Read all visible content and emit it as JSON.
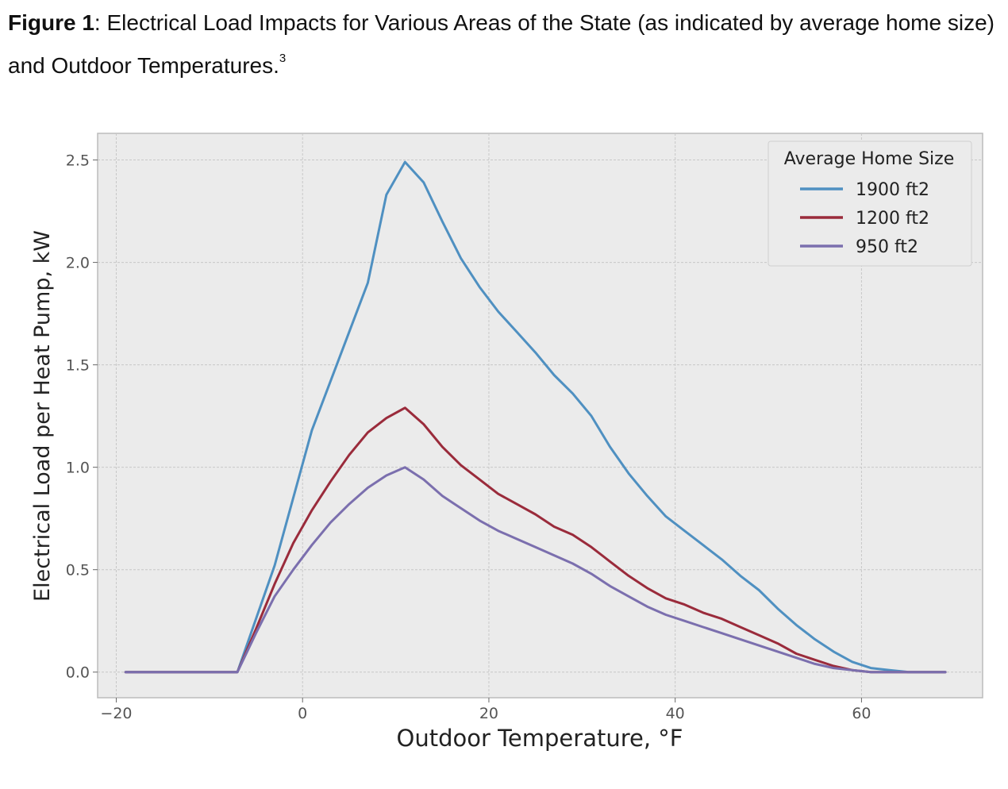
{
  "caption": {
    "label": "Figure 1",
    "separator": ":",
    "text": " Electrical Load Impacts for Various Areas of the State (as indicated by average home size) and Outdoor Temperatures.",
    "footnote": "3"
  },
  "chart_data": {
    "type": "line",
    "title": "",
    "xlabel": "Outdoor Temperature, °F",
    "ylabel": "Electrical Load per Heat Pump, kW",
    "xlim": [
      -22,
      73
    ],
    "ylim": [
      -0.125,
      2.63
    ],
    "xticks": [
      -20,
      0,
      20,
      40,
      60
    ],
    "xtick_labels": [
      "−20",
      "0",
      "20",
      "40",
      "60"
    ],
    "yticks": [
      0.0,
      0.5,
      1.0,
      1.5,
      2.0,
      2.5
    ],
    "ytick_labels": [
      "0.0",
      "0.5",
      "1.0",
      "1.5",
      "2.0",
      "2.5"
    ],
    "grid": true,
    "legend": {
      "title": "Average Home Size",
      "placement": "top-right"
    },
    "series": [
      {
        "name": "1900 ft2",
        "color": "#4f90c1",
        "x": [
          -19,
          -7,
          -3,
          1,
          3,
          5,
          7,
          9,
          11,
          13,
          15,
          17,
          19,
          21,
          23,
          25,
          27,
          29,
          31,
          33,
          35,
          37,
          39,
          41,
          43,
          45,
          47,
          49,
          51,
          53,
          55,
          57,
          59,
          61,
          63,
          65,
          67,
          69
        ],
        "y": [
          0,
          0,
          0.52,
          1.18,
          1.42,
          1.66,
          1.9,
          2.33,
          2.49,
          2.39,
          2.2,
          2.02,
          1.88,
          1.76,
          1.66,
          1.56,
          1.45,
          1.36,
          1.25,
          1.1,
          0.97,
          0.86,
          0.76,
          0.69,
          0.62,
          0.55,
          0.47,
          0.4,
          0.31,
          0.23,
          0.16,
          0.1,
          0.05,
          0.02,
          0.01,
          0,
          0,
          0
        ]
      },
      {
        "name": "1200 ft2",
        "color": "#9a2b3b",
        "x": [
          -19,
          -7,
          -5,
          -3,
          -1,
          1,
          3,
          5,
          7,
          9,
          11,
          13,
          15,
          17,
          19,
          21,
          23,
          25,
          27,
          29,
          31,
          33,
          35,
          37,
          39,
          41,
          43,
          45,
          47,
          49,
          51,
          53,
          55,
          57,
          59,
          61,
          63,
          65,
          67,
          69
        ],
        "y": [
          0,
          0,
          0.21,
          0.43,
          0.63,
          0.79,
          0.93,
          1.06,
          1.17,
          1.24,
          1.29,
          1.21,
          1.1,
          1.01,
          0.94,
          0.87,
          0.82,
          0.77,
          0.71,
          0.67,
          0.61,
          0.54,
          0.47,
          0.41,
          0.36,
          0.33,
          0.29,
          0.26,
          0.22,
          0.18,
          0.14,
          0.09,
          0.06,
          0.03,
          0.01,
          0,
          0,
          0,
          0,
          0
        ]
      },
      {
        "name": "950 ft2",
        "color": "#7b6fae",
        "x": [
          -19,
          -7,
          -5,
          -3,
          -1,
          1,
          3,
          5,
          7,
          9,
          11,
          13,
          15,
          17,
          19,
          21,
          23,
          25,
          27,
          29,
          31,
          33,
          35,
          37,
          39,
          41,
          43,
          45,
          47,
          49,
          51,
          53,
          55,
          57,
          59,
          61,
          63,
          65,
          67,
          69
        ],
        "y": [
          0,
          0,
          0.19,
          0.37,
          0.5,
          0.62,
          0.73,
          0.82,
          0.9,
          0.96,
          1.0,
          0.94,
          0.86,
          0.8,
          0.74,
          0.69,
          0.65,
          0.61,
          0.57,
          0.53,
          0.48,
          0.42,
          0.37,
          0.32,
          0.28,
          0.25,
          0.22,
          0.19,
          0.16,
          0.13,
          0.1,
          0.07,
          0.04,
          0.02,
          0.01,
          0,
          0,
          0,
          0,
          0
        ]
      }
    ]
  }
}
